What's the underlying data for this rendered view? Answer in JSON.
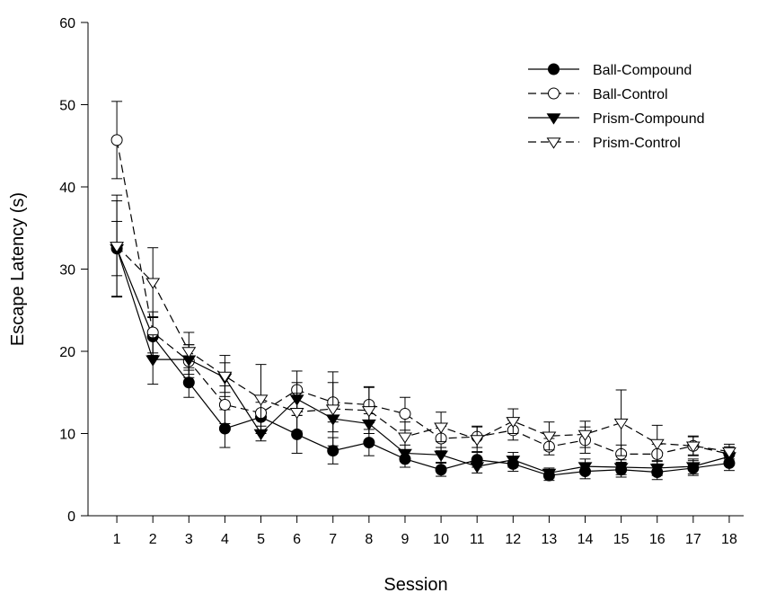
{
  "chart_data": {
    "type": "line",
    "title": "",
    "xlabel": "Session",
    "ylabel": "Escape Latency (s)",
    "ylim": [
      0,
      60
    ],
    "y_ticks": [
      0,
      10,
      20,
      30,
      40,
      50,
      60
    ],
    "x": [
      1,
      2,
      3,
      4,
      5,
      6,
      7,
      8,
      9,
      10,
      11,
      12,
      13,
      14,
      15,
      16,
      17,
      18
    ],
    "grid": false,
    "legend_position": "top-right",
    "series": [
      {
        "name": "Ball-Compound",
        "marker": "filled-circle",
        "line_style": "solid",
        "values": [
          32.5,
          21.8,
          16.2,
          10.6,
          12.0,
          9.9,
          7.9,
          8.9,
          6.9,
          5.6,
          6.8,
          6.3,
          4.9,
          5.4,
          5.6,
          5.3,
          5.8,
          6.4
        ],
        "errors": [
          5.8,
          2.3,
          1.8,
          2.3,
          1.8,
          2.3,
          1.6,
          1.6,
          1.0,
          0.8,
          0.9,
          0.9,
          0.6,
          0.9,
          0.9,
          0.9,
          0.9,
          0.9
        ]
      },
      {
        "name": "Ball-Control",
        "marker": "open-circle",
        "line_style": "dashed",
        "values": [
          45.7,
          22.3,
          18.8,
          13.5,
          12.5,
          15.3,
          13.8,
          13.5,
          12.4,
          9.4,
          9.6,
          10.4,
          8.4,
          9.2,
          7.5,
          7.5,
          8.5,
          7.5
        ],
        "errors": [
          4.7,
          2.5,
          2.0,
          2.3,
          2.1,
          2.3,
          2.4,
          2.2,
          2.0,
          1.5,
          1.3,
          1.2,
          1.0,
          1.6,
          1.1,
          1.2,
          1.1,
          0.9
        ]
      },
      {
        "name": "Prism-Compound",
        "marker": "filled-triangle-down",
        "line_style": "solid",
        "values": [
          32.5,
          19.0,
          19.0,
          16.8,
          10.0,
          14.2,
          11.8,
          11.2,
          7.6,
          7.4,
          6.0,
          6.8,
          5.2,
          6.0,
          5.9,
          5.8,
          6.0,
          7.2
        ],
        "errors": [
          3.3,
          3.0,
          1.8,
          1.8,
          0.9,
          2.0,
          1.6,
          1.2,
          1.0,
          0.9,
          0.8,
          0.9,
          0.6,
          0.9,
          0.9,
          0.9,
          0.9,
          0.9
        ]
      },
      {
        "name": "Prism-Control",
        "marker": "open-triangle-down",
        "line_style": "dashed",
        "values": [
          32.8,
          28.4,
          20.0,
          17.0,
          14.2,
          12.6,
          13.0,
          12.8,
          9.6,
          10.8,
          9.3,
          11.5,
          9.7,
          9.9,
          11.3,
          8.8,
          8.5,
          7.8
        ],
        "errors": [
          6.2,
          4.2,
          2.3,
          2.5,
          4.2,
          2.3,
          4.5,
          2.8,
          1.8,
          1.8,
          1.5,
          1.5,
          1.7,
          1.6,
          4.0,
          2.2,
          1.2,
          0.9
        ]
      }
    ]
  }
}
